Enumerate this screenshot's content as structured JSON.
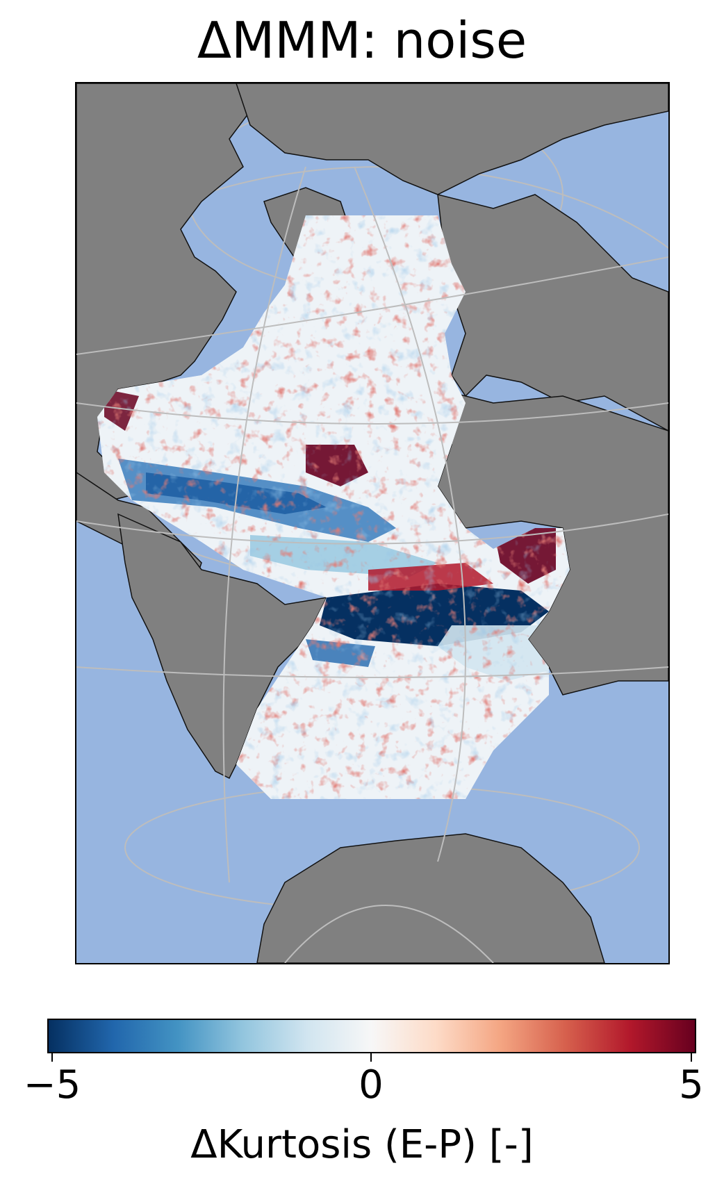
{
  "title": "ΔMMM: noise",
  "map": {
    "projection": "orthographic",
    "ocean_color": "#97b5e0",
    "land_color": "#808080",
    "gridline_color": "#bdbdbd"
  },
  "colorbar": {
    "colormap": "RdBu_r",
    "label": "ΔKurtosis (E-P) [-]",
    "ticks": [
      "−5",
      "0",
      "5"
    ],
    "range": [
      -5,
      5
    ],
    "colors": [
      "#053061",
      "#2166ac",
      "#4393c3",
      "#92c5de",
      "#d1e5f0",
      "#f7f7f7",
      "#fddbc7",
      "#f4a582",
      "#d6604d",
      "#b2182b",
      "#67001f"
    ]
  }
}
